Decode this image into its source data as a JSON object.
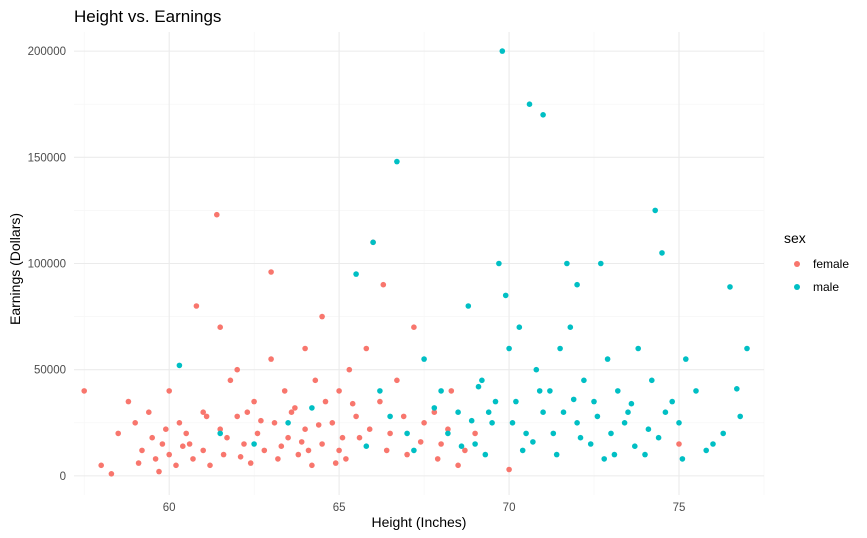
{
  "chart_data": {
    "type": "scatter",
    "title": "Height vs. Earnings",
    "xlabel": "Height (Inches)",
    "ylabel": "Earnings (Dollars)",
    "xlim": [
      57.2,
      77.5
    ],
    "ylim": [
      -9000,
      209000
    ],
    "x_ticks": [
      60,
      65,
      70,
      75
    ],
    "y_ticks": [
      0,
      50000,
      100000,
      150000,
      200000
    ],
    "x_tick_labels": [
      "60",
      "65",
      "70",
      "75"
    ],
    "y_tick_labels": [
      "0",
      "50000",
      "100000",
      "150000",
      "200000"
    ],
    "grid": true,
    "legend": {
      "title": "sex",
      "position": "right"
    },
    "series": [
      {
        "name": "female",
        "color": "#F8766D",
        "points": [
          [
            57.5,
            40000
          ],
          [
            58,
            5000
          ],
          [
            58.3,
            1000
          ],
          [
            58.5,
            20000
          ],
          [
            58.8,
            35000
          ],
          [
            59,
            25000
          ],
          [
            59.2,
            12000
          ],
          [
            59.4,
            30000
          ],
          [
            59.5,
            18000
          ],
          [
            59.6,
            8000
          ],
          [
            59.7,
            2000
          ],
          [
            59.8,
            15000
          ],
          [
            60,
            40000
          ],
          [
            60,
            10000
          ],
          [
            60.2,
            5000
          ],
          [
            60.3,
            25000
          ],
          [
            60.5,
            20000
          ],
          [
            60.6,
            15000
          ],
          [
            60.7,
            8000
          ],
          [
            60.8,
            80000
          ],
          [
            61,
            30000
          ],
          [
            61,
            12000
          ],
          [
            61.2,
            5000
          ],
          [
            61.4,
            123000
          ],
          [
            61.5,
            22000
          ],
          [
            61.5,
            70000
          ],
          [
            61.6,
            10000
          ],
          [
            61.8,
            45000
          ],
          [
            62,
            50000
          ],
          [
            62,
            28000
          ],
          [
            62.2,
            15000
          ],
          [
            62.4,
            6000
          ],
          [
            62.5,
            35000
          ],
          [
            62.6,
            20000
          ],
          [
            62.8,
            12000
          ],
          [
            63,
            96000
          ],
          [
            63,
            55000
          ],
          [
            63.1,
            25000
          ],
          [
            63.2,
            8000
          ],
          [
            63.4,
            40000
          ],
          [
            63.5,
            18000
          ],
          [
            63.6,
            30000
          ],
          [
            63.8,
            10000
          ],
          [
            64,
            60000
          ],
          [
            64,
            22000
          ],
          [
            64.2,
            5000
          ],
          [
            64.3,
            45000
          ],
          [
            64.5,
            75000
          ],
          [
            64.5,
            15000
          ],
          [
            64.6,
            35000
          ],
          [
            64.8,
            25000
          ],
          [
            65,
            40000
          ],
          [
            65,
            12000
          ],
          [
            65.2,
            8000
          ],
          [
            65.3,
            50000
          ],
          [
            65.5,
            28000
          ],
          [
            65.6,
            18000
          ],
          [
            65.8,
            60000
          ],
          [
            66,
            110000
          ],
          [
            66.2,
            35000
          ],
          [
            66.3,
            90000
          ],
          [
            66.5,
            20000
          ],
          [
            66.7,
            45000
          ],
          [
            67,
            10000
          ],
          [
            67.2,
            70000
          ],
          [
            67.5,
            25000
          ],
          [
            67.8,
            30000
          ],
          [
            68,
            15000
          ],
          [
            68.3,
            40000
          ],
          [
            68.5,
            5000
          ],
          [
            69,
            20000
          ],
          [
            70,
            3000
          ],
          [
            75,
            15000
          ],
          [
            59.1,
            6000
          ],
          [
            59.9,
            22000
          ],
          [
            60.4,
            14000
          ],
          [
            61.1,
            28000
          ],
          [
            61.7,
            18000
          ],
          [
            62.1,
            9000
          ],
          [
            62.7,
            26000
          ],
          [
            63.3,
            14000
          ],
          [
            63.7,
            32000
          ],
          [
            64.1,
            12000
          ],
          [
            64.4,
            24000
          ],
          [
            64.9,
            6000
          ],
          [
            65.4,
            34000
          ],
          [
            65.9,
            22000
          ],
          [
            66.4,
            12000
          ],
          [
            66.9,
            28000
          ],
          [
            67.4,
            16000
          ],
          [
            67.9,
            8000
          ],
          [
            68.2,
            22000
          ],
          [
            68.7,
            12000
          ],
          [
            62.3,
            30000
          ],
          [
            63.9,
            16000
          ],
          [
            65.1,
            18000
          ]
        ]
      },
      {
        "name": "male",
        "color": "#00BFC4",
        "points": [
          [
            60.3,
            52000
          ],
          [
            65.5,
            95000
          ],
          [
            66,
            110000
          ],
          [
            66.7,
            148000
          ],
          [
            67,
            20000
          ],
          [
            67.5,
            55000
          ],
          [
            68,
            40000
          ],
          [
            68.5,
            30000
          ],
          [
            68.8,
            80000
          ],
          [
            69,
            15000
          ],
          [
            69.2,
            45000
          ],
          [
            69.5,
            25000
          ],
          [
            69.7,
            100000
          ],
          [
            69.8,
            200000
          ],
          [
            69.9,
            85000
          ],
          [
            70,
            60000
          ],
          [
            70.2,
            35000
          ],
          [
            70.3,
            70000
          ],
          [
            70.5,
            20000
          ],
          [
            70.6,
            175000
          ],
          [
            70.8,
            50000
          ],
          [
            71,
            170000
          ],
          [
            71,
            30000
          ],
          [
            71.2,
            40000
          ],
          [
            71.4,
            10000
          ],
          [
            71.5,
            60000
          ],
          [
            71.7,
            100000
          ],
          [
            71.8,
            70000
          ],
          [
            72,
            90000
          ],
          [
            72,
            25000
          ],
          [
            72.2,
            45000
          ],
          [
            72.4,
            15000
          ],
          [
            72.5,
            35000
          ],
          [
            72.7,
            100000
          ],
          [
            72.9,
            55000
          ],
          [
            73,
            20000
          ],
          [
            73.2,
            40000
          ],
          [
            73.5,
            30000
          ],
          [
            73.8,
            60000
          ],
          [
            74,
            10000
          ],
          [
            74.2,
            45000
          ],
          [
            74.3,
            125000
          ],
          [
            74.5,
            105000
          ],
          [
            74.8,
            35000
          ],
          [
            75,
            25000
          ],
          [
            75.2,
            55000
          ],
          [
            75.5,
            40000
          ],
          [
            76,
            15000
          ],
          [
            76.3,
            20000
          ],
          [
            76.5,
            89000
          ],
          [
            76.7,
            41000
          ],
          [
            77,
            60000
          ],
          [
            76.8,
            28000
          ],
          [
            69.3,
            10000
          ],
          [
            69.6,
            35000
          ],
          [
            70.1,
            25000
          ],
          [
            70.4,
            12000
          ],
          [
            70.9,
            40000
          ],
          [
            71.3,
            20000
          ],
          [
            71.6,
            30000
          ],
          [
            72.1,
            18000
          ],
          [
            72.6,
            28000
          ],
          [
            73.1,
            10000
          ],
          [
            73.4,
            25000
          ],
          [
            73.7,
            14000
          ],
          [
            74.1,
            22000
          ],
          [
            74.6,
            30000
          ],
          [
            75.1,
            8000
          ],
          [
            66.5,
            28000
          ],
          [
            67.2,
            12000
          ],
          [
            67.8,
            32000
          ],
          [
            68.2,
            20000
          ],
          [
            68.9,
            26000
          ],
          [
            65.8,
            14000
          ],
          [
            66.2,
            40000
          ],
          [
            63.5,
            25000
          ],
          [
            64.2,
            32000
          ],
          [
            61.5,
            20000
          ],
          [
            62.5,
            15000
          ],
          [
            69.1,
            42000
          ],
          [
            70.7,
            16000
          ],
          [
            71.9,
            36000
          ],
          [
            72.8,
            8000
          ],
          [
            73.6,
            34000
          ],
          [
            74.4,
            18000
          ],
          [
            75.8,
            12000
          ],
          [
            68.6,
            14000
          ],
          [
            69.4,
            30000
          ]
        ]
      }
    ]
  }
}
